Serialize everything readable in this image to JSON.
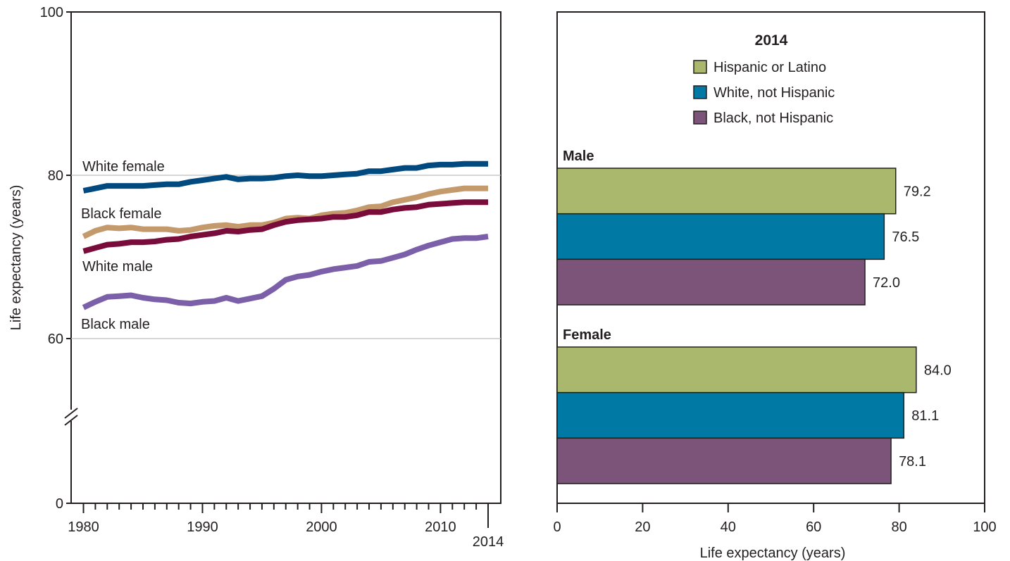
{
  "chart_data": [
    {
      "type": "line",
      "ylabel": "Life expectancy (years)",
      "ylim": [
        0,
        100
      ],
      "y_axis_break": [
        0,
        50
      ],
      "yticks": [
        0,
        60,
        80,
        100
      ],
      "xlim": [
        1980,
        2014
      ],
      "xticks": [
        1980,
        1990,
        2000,
        2010,
        2014
      ],
      "grid_y": [
        60,
        80
      ],
      "x": [
        1980,
        1981,
        1982,
        1983,
        1984,
        1985,
        1986,
        1987,
        1988,
        1989,
        1990,
        1991,
        1992,
        1993,
        1994,
        1995,
        1996,
        1997,
        1998,
        1999,
        2000,
        2001,
        2002,
        2003,
        2004,
        2005,
        2006,
        2007,
        2008,
        2009,
        2010,
        2011,
        2012,
        2013,
        2014
      ],
      "series": [
        {
          "name": "White female",
          "color": "#004a80",
          "values": [
            78.1,
            78.4,
            78.7,
            78.7,
            78.7,
            78.7,
            78.8,
            78.9,
            78.9,
            79.2,
            79.4,
            79.6,
            79.8,
            79.5,
            79.6,
            79.6,
            79.7,
            79.9,
            80.0,
            79.9,
            79.9,
            80.0,
            80.1,
            80.2,
            80.5,
            80.5,
            80.7,
            80.9,
            80.9,
            81.2,
            81.3,
            81.3,
            81.4,
            81.4,
            81.4
          ]
        },
        {
          "name": "Black female",
          "color": "#c49a6c",
          "values": [
            72.5,
            73.2,
            73.6,
            73.5,
            73.6,
            73.4,
            73.4,
            73.4,
            73.2,
            73.3,
            73.6,
            73.8,
            73.9,
            73.7,
            73.9,
            73.9,
            74.2,
            74.7,
            74.8,
            74.7,
            75.1,
            75.3,
            75.4,
            75.7,
            76.1,
            76.2,
            76.7,
            77.0,
            77.3,
            77.7,
            78.0,
            78.2,
            78.4,
            78.4,
            78.4
          ]
        },
        {
          "name": "White male",
          "color": "#7a0c3b",
          "values": [
            70.7,
            71.1,
            71.5,
            71.6,
            71.8,
            71.8,
            71.9,
            72.1,
            72.2,
            72.5,
            72.7,
            72.9,
            73.2,
            73.1,
            73.3,
            73.4,
            73.9,
            74.3,
            74.5,
            74.6,
            74.7,
            74.9,
            74.9,
            75.1,
            75.5,
            75.5,
            75.8,
            76.0,
            76.1,
            76.4,
            76.5,
            76.6,
            76.7,
            76.7,
            76.7
          ]
        },
        {
          "name": "Black male",
          "color": "#7b5fa8",
          "values": [
            63.8,
            64.5,
            65.1,
            65.2,
            65.3,
            65.0,
            64.8,
            64.7,
            64.4,
            64.3,
            64.5,
            64.6,
            65.0,
            64.6,
            64.9,
            65.2,
            66.1,
            67.2,
            67.6,
            67.8,
            68.2,
            68.5,
            68.7,
            68.9,
            69.4,
            69.5,
            69.9,
            70.3,
            70.9,
            71.4,
            71.8,
            72.2,
            72.3,
            72.3,
            72.5
          ]
        }
      ]
    },
    {
      "type": "bar",
      "orientation": "horizontal",
      "title": "2014",
      "xlabel": "Life expectancy (years)",
      "xlim": [
        0,
        100
      ],
      "xticks": [
        0,
        20,
        40,
        60,
        80,
        100
      ],
      "legend": "top-center",
      "legend_entries": [
        {
          "label": "Hispanic or Latino",
          "color": "#a9b86c"
        },
        {
          "label": "White, not Hispanic",
          "color": "#0079a4"
        },
        {
          "label": "Black, not Hispanic",
          "color": "#7c5479"
        }
      ],
      "groups": [
        {
          "name": "Male",
          "values": [
            79.2,
            76.5,
            72.0
          ],
          "labels": [
            "79.2",
            "76.5",
            "72.0"
          ]
        },
        {
          "name": "Female",
          "values": [
            84.0,
            81.1,
            78.1
          ],
          "labels": [
            "84.0",
            "81.1",
            "78.1"
          ]
        }
      ]
    }
  ]
}
